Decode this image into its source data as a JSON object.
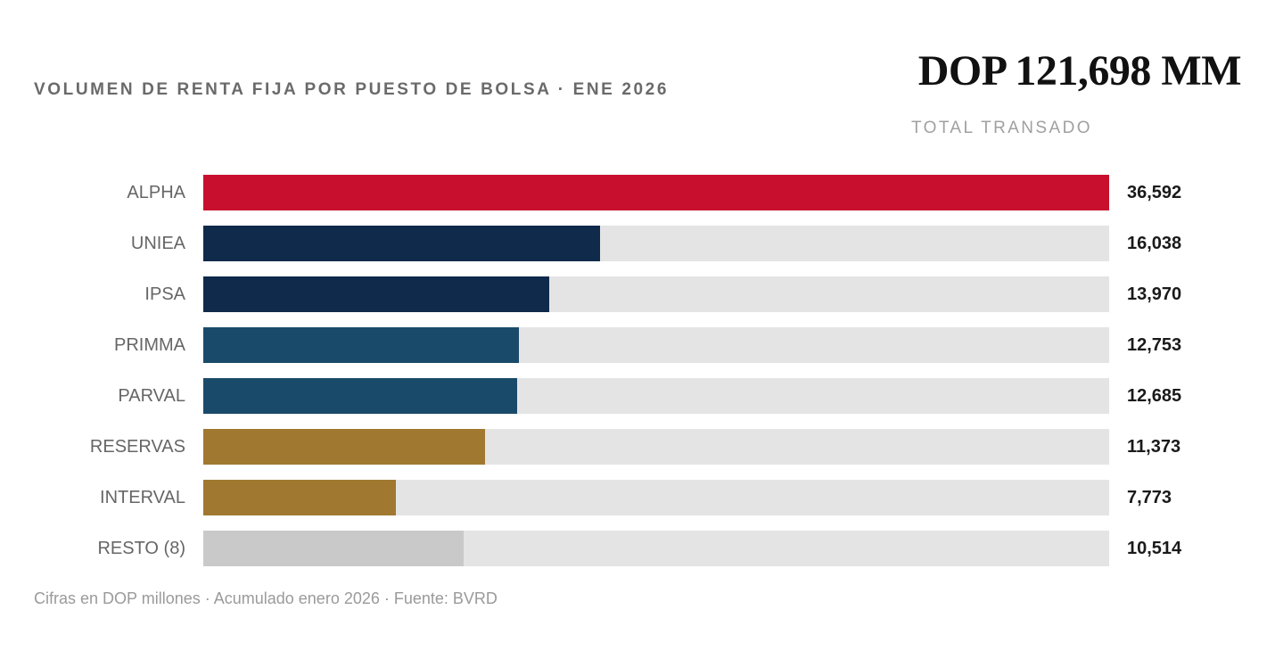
{
  "header": {
    "title": "VOLUMEN DE RENTA FIJA POR PUESTO DE BOLSA · ENE 2026",
    "total_value": "DOP 121,698 MM",
    "total_label": "TOTAL TRANSADO"
  },
  "footnote": "Cifras en DOP millones · Acumulado enero 2026 · Fuente: BVRD",
  "colors": {
    "track": "#e4e4e4",
    "alpha": "#c8102e",
    "navy": "#0f2a4a",
    "blue": "#1a4a6a",
    "gold": "#a07830",
    "grey": "#c9c9c9"
  },
  "chart_data": {
    "type": "bar",
    "orientation": "horizontal",
    "xlim": [
      0,
      36592
    ],
    "categories": [
      "ALPHA",
      "UNIEA",
      "IPSA",
      "PRIMMA",
      "PARVAL",
      "RESERVAS",
      "INTERVAL",
      "RESTO (8)"
    ],
    "values": [
      36592,
      16038,
      13970,
      12753,
      12685,
      11373,
      7773,
      10514
    ],
    "value_labels": [
      "36,592",
      "16,038",
      "13,970",
      "12,753",
      "12,685",
      "11,373",
      "7,773",
      "10,514"
    ],
    "bar_colors": [
      "#c8102e",
      "#0f2a4a",
      "#0f2a4a",
      "#1a4a6a",
      "#1a4a6a",
      "#a07830",
      "#a07830",
      "#c9c9c9"
    ]
  }
}
